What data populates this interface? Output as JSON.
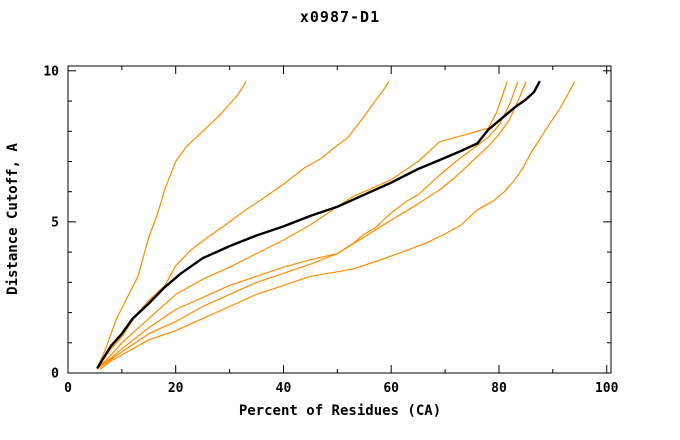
{
  "accent_color": "#ff8c00",
  "chart_data": {
    "type": "line",
    "title": "x0987-D1",
    "xlabel": "Percent of Residues (CA)",
    "ylabel": "Distance Cutoff, A",
    "xlim": [
      0,
      100.8
    ],
    "ylim": [
      0,
      10.16
    ],
    "xticks_major": [
      0,
      20,
      40,
      60,
      80,
      100
    ],
    "xticks_minor": [
      10,
      30,
      50,
      70,
      90
    ],
    "yticks_major": [
      0,
      5,
      10
    ],
    "yticks_minor": [
      1,
      2,
      3,
      4,
      6,
      7,
      8,
      9
    ],
    "grid": false,
    "legend": "none",
    "series": [
      {
        "name": "orange-model-1",
        "color": "#ff8c00",
        "width": 1.2,
        "points": [
          [
            5.5,
            0.2
          ],
          [
            7,
            0.8
          ],
          [
            9,
            1.8
          ],
          [
            11,
            2.5
          ],
          [
            13,
            3.2
          ],
          [
            15,
            4.5
          ],
          [
            16.5,
            5.2
          ],
          [
            18,
            6.1
          ],
          [
            20,
            7.0
          ],
          [
            22,
            7.5
          ],
          [
            25,
            8.0
          ],
          [
            28,
            8.5
          ],
          [
            30,
            8.9
          ],
          [
            31.5,
            9.2
          ],
          [
            33,
            9.63
          ]
        ]
      },
      {
        "name": "orange-model-2",
        "color": "#ff8c00",
        "width": 1.2,
        "points": [
          [
            5.5,
            0.18
          ],
          [
            8,
            0.8
          ],
          [
            10,
            1.2
          ],
          [
            13,
            2.0
          ],
          [
            15,
            2.4
          ],
          [
            18,
            2.9
          ],
          [
            20,
            3.55
          ],
          [
            23,
            4.1
          ],
          [
            26,
            4.5
          ],
          [
            30,
            5.0
          ],
          [
            33,
            5.4
          ],
          [
            36,
            5.75
          ],
          [
            40,
            6.25
          ],
          [
            44,
            6.8
          ],
          [
            47,
            7.1
          ],
          [
            49,
            7.4
          ],
          [
            52,
            7.8
          ],
          [
            55,
            8.5
          ],
          [
            57,
            9.0
          ],
          [
            58.5,
            9.35
          ],
          [
            59.5,
            9.63
          ]
        ]
      },
      {
        "name": "orange-model-3",
        "color": "#ff8c00",
        "width": 1.2,
        "points": [
          [
            5.5,
            0.15
          ],
          [
            8,
            0.6
          ],
          [
            10,
            1.0
          ],
          [
            15,
            1.8
          ],
          [
            20,
            2.6
          ],
          [
            25,
            3.1
          ],
          [
            30,
            3.5
          ],
          [
            35,
            3.95
          ],
          [
            40,
            4.4
          ],
          [
            45,
            4.9
          ],
          [
            50,
            5.5
          ],
          [
            53,
            5.85
          ],
          [
            55,
            6.0
          ],
          [
            60,
            6.4
          ],
          [
            65,
            7.0
          ],
          [
            69,
            7.65
          ],
          [
            72,
            7.8
          ],
          [
            75,
            7.95
          ],
          [
            78,
            8.1
          ],
          [
            79.5,
            8.6
          ],
          [
            80.5,
            9.1
          ],
          [
            81.5,
            9.63
          ]
        ]
      },
      {
        "name": "orange-model-4",
        "color": "#ff8c00",
        "width": 1.2,
        "points": [
          [
            5.5,
            0.15
          ],
          [
            8,
            0.5
          ],
          [
            10,
            0.8
          ],
          [
            15,
            1.5
          ],
          [
            20,
            2.1
          ],
          [
            25,
            2.5
          ],
          [
            30,
            2.9
          ],
          [
            35,
            3.2
          ],
          [
            40,
            3.5
          ],
          [
            45,
            3.75
          ],
          [
            50,
            3.95
          ],
          [
            53,
            4.3
          ],
          [
            55,
            4.6
          ],
          [
            57,
            4.8
          ],
          [
            60,
            5.3
          ],
          [
            63,
            5.7
          ],
          [
            65,
            5.9
          ],
          [
            69,
            6.55
          ],
          [
            72,
            7.0
          ],
          [
            75,
            7.4
          ],
          [
            78,
            7.8
          ],
          [
            80,
            8.2
          ],
          [
            82,
            8.9
          ],
          [
            83.5,
            9.63
          ]
        ]
      },
      {
        "name": "orange-model-5",
        "color": "#ff8c00",
        "width": 1.2,
        "points": [
          [
            5.5,
            0.15
          ],
          [
            8,
            0.45
          ],
          [
            10,
            0.7
          ],
          [
            15,
            1.3
          ],
          [
            20,
            1.7
          ],
          [
            25,
            2.2
          ],
          [
            30,
            2.6
          ],
          [
            35,
            3.0
          ],
          [
            40,
            3.3
          ],
          [
            45,
            3.6
          ],
          [
            50,
            3.95
          ],
          [
            55,
            4.5
          ],
          [
            60,
            5.06
          ],
          [
            65,
            5.6
          ],
          [
            69,
            6.06
          ],
          [
            72,
            6.5
          ],
          [
            75,
            7.0
          ],
          [
            78,
            7.5
          ],
          [
            80,
            7.9
          ],
          [
            82,
            8.4
          ],
          [
            84,
            9.2
          ],
          [
            85,
            9.63
          ]
        ]
      },
      {
        "name": "orange-model-6",
        "color": "#ff8c00",
        "width": 1.2,
        "points": [
          [
            6,
            0.13
          ],
          [
            8,
            0.4
          ],
          [
            10,
            0.6
          ],
          [
            15,
            1.1
          ],
          [
            20,
            1.4
          ],
          [
            25,
            1.8
          ],
          [
            30,
            2.2
          ],
          [
            35,
            2.6
          ],
          [
            40,
            2.9
          ],
          [
            45,
            3.2
          ],
          [
            50,
            3.35
          ],
          [
            53,
            3.45
          ],
          [
            58,
            3.74
          ],
          [
            62,
            4.0
          ],
          [
            66.5,
            4.3
          ],
          [
            70,
            4.6
          ],
          [
            73,
            4.9
          ],
          [
            76,
            5.4
          ],
          [
            79,
            5.7
          ],
          [
            81,
            6.0
          ],
          [
            83,
            6.4
          ],
          [
            84.5,
            6.8
          ],
          [
            86,
            7.3
          ],
          [
            88.5,
            8.0
          ],
          [
            90,
            8.4
          ],
          [
            91.5,
            8.8
          ],
          [
            93,
            9.3
          ],
          [
            94,
            9.63
          ]
        ]
      },
      {
        "name": "black-model",
        "color": "#000000",
        "width": 2.4,
        "points": [
          [
            5.5,
            0.18
          ],
          [
            8,
            0.9
          ],
          [
            10,
            1.3
          ],
          [
            12,
            1.8
          ],
          [
            15,
            2.3
          ],
          [
            18,
            2.85
          ],
          [
            21,
            3.3
          ],
          [
            25,
            3.8
          ],
          [
            30,
            4.2
          ],
          [
            35,
            4.55
          ],
          [
            40,
            4.85
          ],
          [
            45,
            5.2
          ],
          [
            50,
            5.5
          ],
          [
            55,
            5.9
          ],
          [
            60,
            6.3
          ],
          [
            65,
            6.75
          ],
          [
            69,
            7.05
          ],
          [
            73,
            7.35
          ],
          [
            76,
            7.6
          ],
          [
            78,
            8.05
          ],
          [
            80,
            8.35
          ],
          [
            83,
            8.8
          ],
          [
            85,
            9.05
          ],
          [
            86.5,
            9.3
          ],
          [
            87.5,
            9.63
          ]
        ]
      }
    ]
  }
}
